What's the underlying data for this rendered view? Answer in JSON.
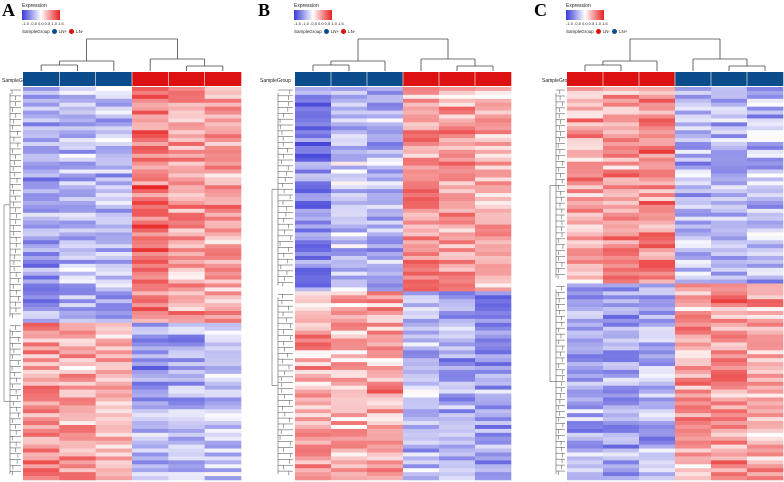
{
  "chart_data": [
    {
      "type": "heatmap",
      "panel_label": "A",
      "legend_title": "Expression",
      "legend_ticks": "-1.0 -0.5 0.0 0.5 1.0 1.5",
      "legend_colors": [
        "#3a3ad8",
        "#ffffff",
        "#e82020"
      ],
      "sample_group_label": "SampleGroup",
      "group_legend": [
        {
          "label": "LN+",
          "color": "#0b4c8c"
        },
        {
          "label": "LN-",
          "color": "#dd1111"
        }
      ],
      "columns": [
        "LN+",
        "LN+",
        "LN+",
        "LN-",
        "LN-",
        "LN-"
      ],
      "column_colors": [
        "#0b4c8c",
        "#0b4c8c",
        "#0b4c8c",
        "#dd1111",
        "#dd1111",
        "#dd1111"
      ],
      "row_blocks": [
        {
          "rows": 60,
          "pattern": [
            -0.7,
            -0.5,
            -0.5,
            0.9,
            0.6,
            0.6
          ]
        },
        {
          "rows": 40,
          "pattern": [
            0.7,
            0.6,
            0.4,
            -0.7,
            -0.6,
            -0.4
          ]
        }
      ],
      "color_range": [
        -1.5,
        1.5
      ]
    },
    {
      "type": "heatmap",
      "panel_label": "B",
      "legend_title": "Expression",
      "legend_ticks": "-1.5 -1.0 -0.5 0.0 0.5 1.0 1.5",
      "legend_colors": [
        "#3a3ad8",
        "#ffffff",
        "#e82020"
      ],
      "sample_group_label": "SampleGroup",
      "group_legend": [
        {
          "label": "LN+",
          "color": "#0b4c8c"
        },
        {
          "label": "LN-",
          "color": "#dd1111"
        }
      ],
      "columns": [
        "LN+",
        "LN+",
        "LN+",
        "LN-",
        "LN-",
        "LN-"
      ],
      "column_colors": [
        "#0b4c8c",
        "#0b4c8c",
        "#0b4c8c",
        "#dd1111",
        "#dd1111",
        "#dd1111"
      ],
      "row_blocks": [
        {
          "rows": 52,
          "pattern": [
            -0.9,
            -0.4,
            -0.6,
            0.7,
            0.6,
            0.5
          ]
        },
        {
          "rows": 48,
          "pattern": [
            0.6,
            0.5,
            0.6,
            -0.5,
            -0.6,
            -0.7
          ]
        }
      ],
      "color_range": [
        -1.5,
        1.5
      ]
    },
    {
      "type": "heatmap",
      "panel_label": "C",
      "legend_title": "Expression",
      "legend_ticks": "-1.0 -0.5 0.0 0.5 1.0 1.5",
      "legend_colors": [
        "#3a3ad8",
        "#ffffff",
        "#e82020"
      ],
      "sample_group_label": "SampleGroup",
      "group_legend": [
        {
          "label": "LN-",
          "color": "#dd1111"
        },
        {
          "label": "LN+",
          "color": "#0b4c8c"
        }
      ],
      "columns": [
        "LN-",
        "LN-",
        "LN-",
        "LN+",
        "LN+",
        "LN+"
      ],
      "column_colors": [
        "#dd1111",
        "#dd1111",
        "#dd1111",
        "#0b4c8c",
        "#0b4c8c",
        "#0b4c8c"
      ],
      "row_blocks": [
        {
          "rows": 50,
          "pattern": [
            0.6,
            0.7,
            0.8,
            -0.5,
            -0.6,
            -0.5
          ]
        },
        {
          "rows": 50,
          "pattern": [
            -0.6,
            -0.7,
            -0.6,
            0.6,
            0.7,
            0.6
          ]
        }
      ],
      "color_range": [
        -1.5,
        1.5
      ]
    }
  ]
}
